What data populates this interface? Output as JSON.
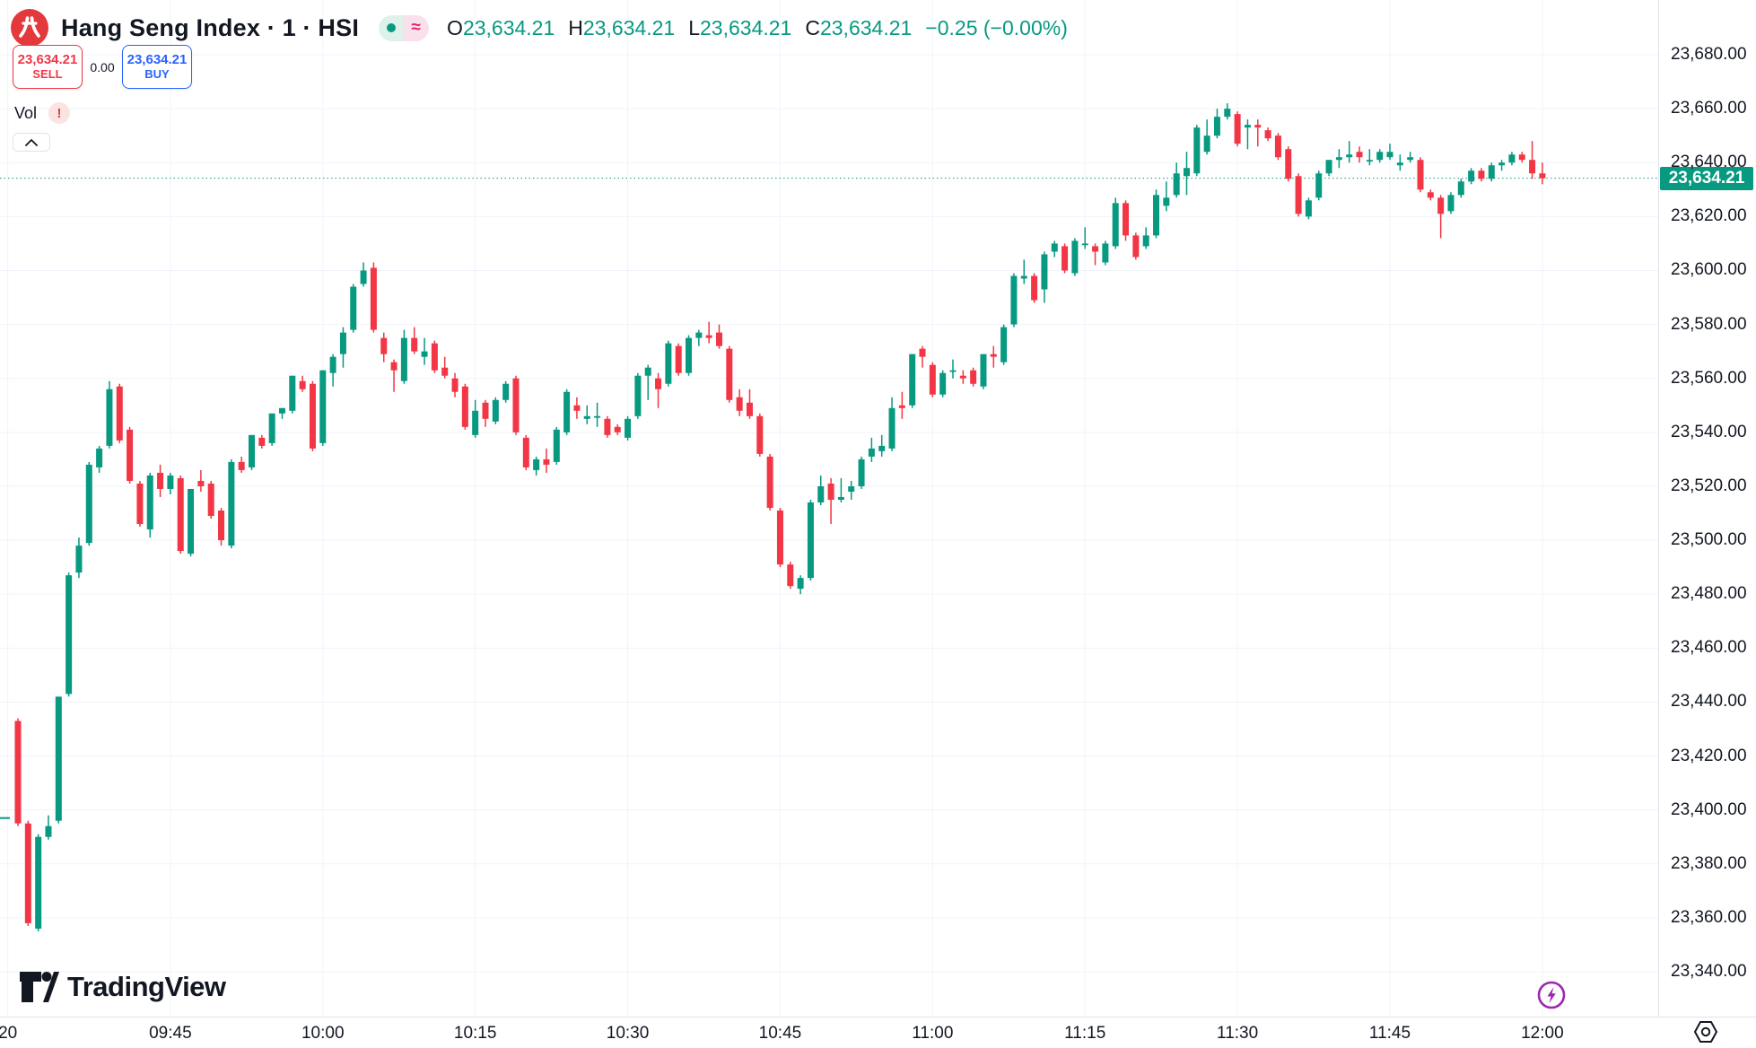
{
  "header": {
    "title": "Hang Seng Index · 1 · HSI",
    "status_pill": {
      "approx_glyph": "≈"
    },
    "ohlc": {
      "o_label": "O",
      "o": "23,634.21",
      "h_label": "H",
      "h": "23,634.21",
      "l_label": "L",
      "l": "23,634.21",
      "c_label": "C",
      "c": "23,634.21",
      "change": "−0.25 (−0.00%)"
    },
    "sell_button": {
      "price": "23,634.21",
      "label": "SELL"
    },
    "spread": "0.00",
    "buy_button": {
      "price": "23,634.21",
      "label": "BUY"
    },
    "vol": {
      "label": "Vol",
      "warning_glyph": "!"
    }
  },
  "brand": {
    "name": "TradingView"
  },
  "colors": {
    "up": "#089981",
    "down": "#f23645",
    "sell": "#f23645",
    "buy": "#2962ff",
    "grid": "#f0f3fa",
    "axis_text": "#131722",
    "last_price_line": "#089981",
    "realtime_icon": "#9c27b0",
    "logo_red": "#e4393c"
  },
  "chart_data": {
    "type": "candlestick",
    "title": "Hang Seng Index",
    "symbol": "HSI",
    "interval": "1",
    "start_time": "09:30",
    "interval_minutes": 1,
    "ylim": [
      23340,
      23680
    ],
    "grid": true,
    "price_axis": {
      "ticks": [
        {
          "label": "23,680.00",
          "value": 23680
        },
        {
          "label": "23,660.00",
          "value": 23660
        },
        {
          "label": "23,640.00",
          "value": 23640
        },
        {
          "label": "23,620.00",
          "value": 23620
        },
        {
          "label": "23,600.00",
          "value": 23600
        },
        {
          "label": "23,580.00",
          "value": 23580
        },
        {
          "label": "23,560.00",
          "value": 23560
        },
        {
          "label": "23,540.00",
          "value": 23540
        },
        {
          "label": "23,520.00",
          "value": 23520
        },
        {
          "label": "23,500.00",
          "value": 23500
        },
        {
          "label": "23,480.00",
          "value": 23480
        },
        {
          "label": "23,460.00",
          "value": 23460
        },
        {
          "label": "23,440.00",
          "value": 23440
        },
        {
          "label": "23,420.00",
          "value": 23420
        },
        {
          "label": "23,400.00",
          "value": 23400
        },
        {
          "label": "23,380.00",
          "value": 23380
        },
        {
          "label": "23,360.00",
          "value": 23360
        },
        {
          "label": "23,340.00",
          "value": 23340
        }
      ],
      "last_price": {
        "label": "23,634.21",
        "value": 23634.21
      }
    },
    "time_axis": {
      "ticks": [
        {
          "label": "20",
          "m": 569
        },
        {
          "label": "09:45",
          "m": 585
        },
        {
          "label": "10:00",
          "m": 600
        },
        {
          "label": "10:15",
          "m": 615
        },
        {
          "label": "10:30",
          "m": 630
        },
        {
          "label": "10:45",
          "m": 645
        },
        {
          "label": "11:00",
          "m": 660
        },
        {
          "label": "11:15",
          "m": 675
        },
        {
          "label": "11:30",
          "m": 690
        },
        {
          "label": "11:45",
          "m": 705
        },
        {
          "label": "12:00",
          "m": 720
        }
      ]
    },
    "open_marker": {
      "value": 23397
    },
    "candles": [
      [
        23433,
        23434,
        23394,
        23395
      ],
      [
        23395,
        23396,
        23357,
        23358
      ],
      [
        23356,
        23391,
        23355,
        23390
      ],
      [
        23390,
        23398,
        23389,
        23394
      ],
      [
        23396,
        23442,
        23395,
        23442
      ],
      [
        23443,
        23488,
        23442,
        23487
      ],
      [
        23488,
        23501,
        23486,
        23498
      ],
      [
        23499,
        23529,
        23498,
        23528
      ],
      [
        23527,
        23535,
        23525,
        23534
      ],
      [
        23535,
        23559,
        23534,
        23556
      ],
      [
        23557,
        23558,
        23536,
        23537
      ],
      [
        23541,
        23542,
        23521,
        23522
      ],
      [
        23521,
        23522,
        23505,
        23506
      ],
      [
        23504,
        23525,
        23501,
        23524
      ],
      [
        23525,
        23528,
        23516,
        23519
      ],
      [
        23519,
        23525,
        23517,
        23524
      ],
      [
        23523,
        23524,
        23495,
        23496
      ],
      [
        23495,
        23519,
        23494,
        23519
      ],
      [
        23522,
        23526,
        23518,
        23520
      ],
      [
        23521,
        23522,
        23508,
        23509
      ],
      [
        23511,
        23512,
        23498,
        23500
      ],
      [
        23498,
        23530,
        23497,
        23529
      ],
      [
        23529,
        23531,
        23525,
        23526
      ],
      [
        23527,
        23539,
        23526,
        23539
      ],
      [
        23538,
        23539,
        23534,
        23535
      ],
      [
        23536,
        23547,
        23535,
        23547
      ],
      [
        23547,
        23549,
        23545,
        23549
      ],
      [
        23548,
        23561,
        23547,
        23561
      ],
      [
        23559,
        23561,
        23555,
        23556
      ],
      [
        23558,
        23559,
        23533,
        23534
      ],
      [
        23536,
        23563,
        23535,
        23563
      ],
      [
        23562,
        23569,
        23557,
        23568
      ],
      [
        23569,
        23579,
        23564,
        23577
      ],
      [
        23578,
        23595,
        23577,
        23594
      ],
      [
        23595,
        23603,
        23594,
        23600
      ],
      [
        23601,
        23603,
        23577,
        23578
      ],
      [
        23575,
        23577,
        23566,
        23569
      ],
      [
        23566,
        23567,
        23555,
        23563
      ],
      [
        23559,
        23578,
        23558,
        23575
      ],
      [
        23575,
        23579,
        23569,
        23570
      ],
      [
        23568,
        23575,
        23565,
        23570
      ],
      [
        23573,
        23574,
        23562,
        23563
      ],
      [
        23564,
        23568,
        23560,
        23561
      ],
      [
        23560,
        23562,
        23553,
        23555
      ],
      [
        23557,
        23558,
        23541,
        23542
      ],
      [
        23539,
        23552,
        23538,
        23548
      ],
      [
        23551,
        23552,
        23542,
        23545
      ],
      [
        23544,
        23553,
        23543,
        23552
      ],
      [
        23552,
        23559,
        23551,
        23558
      ],
      [
        23560,
        23561,
        23539,
        23540
      ],
      [
        23538,
        23539,
        23526,
        23527
      ],
      [
        23526,
        23531,
        23524,
        23530
      ],
      [
        23530,
        23534,
        23525,
        23528
      ],
      [
        23529,
        23542,
        23528,
        23541
      ],
      [
        23540,
        23556,
        23539,
        23555
      ],
      [
        23550,
        23553,
        23545,
        23548
      ],
      [
        23545,
        23550,
        23543,
        23546
      ],
      [
        23546,
        23551,
        23542,
        23546
      ],
      [
        23545,
        23546,
        23538,
        23539
      ],
      [
        23542,
        23543,
        23539,
        23540
      ],
      [
        23538,
        23546,
        23537,
        23545
      ],
      [
        23546,
        23562,
        23545,
        23561
      ],
      [
        23561,
        23565,
        23552,
        23564
      ],
      [
        23560,
        23562,
        23549,
        23556
      ],
      [
        23558,
        23574,
        23557,
        23573
      ],
      [
        23572,
        23573,
        23561,
        23562
      ],
      [
        23562,
        23576,
        23561,
        23575
      ],
      [
        23575,
        23578,
        23572,
        23577
      ],
      [
        23576,
        23581,
        23573,
        23575
      ],
      [
        23577,
        23580,
        23571,
        23572
      ],
      [
        23571,
        23572,
        23551,
        23552
      ],
      [
        23553,
        23556,
        23546,
        23548
      ],
      [
        23551,
        23556,
        23545,
        23546
      ],
      [
        23546,
        23547,
        23531,
        23532
      ],
      [
        23531,
        23532,
        23511,
        23512
      ],
      [
        23511,
        23512,
        23490,
        23491
      ],
      [
        23491,
        23492,
        23482,
        23483
      ],
      [
        23482,
        23487,
        23480,
        23486
      ],
      [
        23486,
        23515,
        23485,
        23514
      ],
      [
        23514,
        23524,
        23513,
        23520
      ],
      [
        23521,
        23523,
        23506,
        23515
      ],
      [
        23515,
        23523,
        23514,
        23516
      ],
      [
        23518,
        23522,
        23515,
        23520
      ],
      [
        23520,
        23531,
        23519,
        23530
      ],
      [
        23531,
        23538,
        23529,
        23534
      ],
      [
        23533,
        23539,
        23531,
        23535
      ],
      [
        23534,
        23553,
        23533,
        23549
      ],
      [
        23550,
        23555,
        23545,
        23549
      ],
      [
        23550,
        23569,
        23549,
        23569
      ],
      [
        23571,
        23572,
        23564,
        23568
      ],
      [
        23565,
        23566,
        23553,
        23554
      ],
      [
        23554,
        23563,
        23553,
        23562
      ],
      [
        23563,
        23567,
        23560,
        23563
      ],
      [
        23561,
        23563,
        23558,
        23560
      ],
      [
        23563,
        23564,
        23557,
        23558
      ],
      [
        23557,
        23569,
        23556,
        23569
      ],
      [
        23569,
        23572,
        23564,
        23568
      ],
      [
        23566,
        23580,
        23565,
        23579
      ],
      [
        23580,
        23599,
        23579,
        23598
      ],
      [
        23597,
        23604,
        23595,
        23598
      ],
      [
        23598,
        23599,
        23588,
        23589
      ],
      [
        23593,
        23607,
        23588,
        23606
      ],
      [
        23607,
        23611,
        23605,
        23610
      ],
      [
        23609,
        23610,
        23599,
        23600
      ],
      [
        23599,
        23612,
        23598,
        23611
      ],
      [
        23610,
        23616,
        23608,
        23610
      ],
      [
        23609,
        23610,
        23602,
        23607
      ],
      [
        23603,
        23611,
        23602,
        23610
      ],
      [
        23609,
        23627,
        23608,
        23625
      ],
      [
        23625,
        23626,
        23611,
        23613
      ],
      [
        23613,
        23614,
        23604,
        23605
      ],
      [
        23609,
        23616,
        23608,
        23613
      ],
      [
        23613,
        23630,
        23612,
        23628
      ],
      [
        23624,
        23633,
        23622,
        23627
      ],
      [
        23628,
        23640,
        23627,
        23636
      ],
      [
        23635,
        23644,
        23628,
        23638
      ],
      [
        23636,
        23654,
        23635,
        23653
      ],
      [
        23644,
        23656,
        23643,
        23650
      ],
      [
        23650,
        23660,
        23649,
        23657
      ],
      [
        23657,
        23662,
        23656,
        23660
      ],
      [
        23658,
        23659,
        23646,
        23647
      ],
      [
        23653,
        23656,
        23645,
        23654
      ],
      [
        23654,
        23656,
        23646,
        23653
      ],
      [
        23652,
        23653,
        23648,
        23649
      ],
      [
        23650,
        23651,
        23641,
        23642
      ],
      [
        23645,
        23646,
        23633,
        23634
      ],
      [
        23635,
        23636,
        23620,
        23621
      ],
      [
        23620,
        23627,
        23619,
        23626
      ],
      [
        23627,
        23637,
        23626,
        23636
      ],
      [
        23636,
        23641,
        23635,
        23641
      ],
      [
        23641,
        23645,
        23638,
        23642
      ],
      [
        23642,
        23648,
        23640,
        23643
      ],
      [
        23644,
        23646,
        23640,
        23642
      ],
      [
        23641,
        23645,
        23639,
        23641
      ],
      [
        23641,
        23645,
        23640,
        23644
      ],
      [
        23642,
        23647,
        23641,
        23644
      ],
      [
        23639,
        23643,
        23637,
        23640
      ],
      [
        23641,
        23644,
        23640,
        23642
      ],
      [
        23641,
        23642,
        23629,
        23630
      ],
      [
        23629,
        23630,
        23626,
        23627
      ],
      [
        23627,
        23628,
        23612,
        23621
      ],
      [
        23622,
        23629,
        23621,
        23628
      ],
      [
        23628,
        23634,
        23627,
        23633
      ],
      [
        23633,
        23638,
        23632,
        23637
      ],
      [
        23637,
        23638,
        23633,
        23634
      ],
      [
        23634,
        23640,
        23633,
        23639
      ],
      [
        23639,
        23641,
        23637,
        23640
      ],
      [
        23640,
        23644,
        23639,
        23643
      ],
      [
        23643,
        23644,
        23640,
        23641
      ],
      [
        23641,
        23648,
        23634,
        23636
      ],
      [
        23636,
        23640,
        23632,
        23634.21
      ]
    ]
  }
}
